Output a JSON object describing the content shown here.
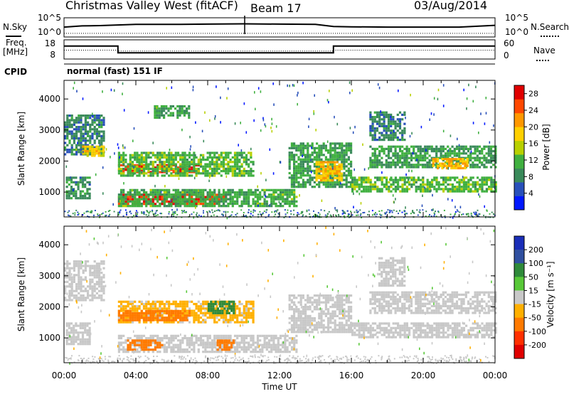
{
  "header": {
    "station": "Christmas Valley West (fitACF)",
    "beam": "Beam 17",
    "date": "03/Aug/2014"
  },
  "side_labels": {
    "nsky": "N.Sky",
    "freq_line1": "Freq.",
    "freq_line2": "[MHz]",
    "cpid": "CPID",
    "nsearch": "N.Search",
    "nave": "Nave"
  },
  "cpid_text": "normal (fast) 151 IF",
  "colors": {
    "power": [
      "#0018ff",
      "#2850ba",
      "#3a8a5a",
      "#40b040",
      "#b8d000",
      "#ffd000",
      "#ff9800",
      "#ff4800",
      "#e00000"
    ],
    "velocity": [
      "#1a2eb8",
      "#3050a0",
      "#2f8a3a",
      "#58c838",
      "#c8c8c8",
      "#c8c8c8",
      "#ffb000",
      "#ff7a00",
      "#ff3000",
      "#e00000"
    ]
  },
  "chart_data": [
    {
      "type": "line",
      "panel": "noise",
      "left_ticks": [
        "10^5",
        "10^0"
      ],
      "right_ticks": [
        "10^5",
        "10^0"
      ],
      "series": [
        {
          "name": "N.Sky",
          "x": [
            0.0,
            1.0,
            2.0,
            3.0,
            4.0,
            6.0,
            8.0,
            10.0,
            12.0,
            14.0,
            15.0,
            16.0,
            18.0,
            20.0,
            22.0,
            24.0
          ],
          "y": [
            2.6,
            3.0,
            3.1,
            3.3,
            3.5,
            3.5,
            3.6,
            3.7,
            3.6,
            3.5,
            2.8,
            2.7,
            2.6,
            2.6,
            2.6,
            3.2
          ]
        },
        {
          "name": "N.Search",
          "x": [
            0.0,
            24.0
          ],
          "y": [
            0.5,
            0.5
          ]
        }
      ]
    },
    {
      "type": "line",
      "panel": "frequency",
      "left_ticks": [
        "18",
        "8"
      ],
      "right_ticks": [
        "60",
        "0"
      ],
      "series": [
        {
          "name": "Freq.",
          "x": [
            0.0,
            3.0,
            3.0,
            15.0,
            15.0,
            24.0
          ],
          "y": [
            15.5,
            15.5,
            10.5,
            10.5,
            15.5,
            15.5
          ]
        },
        {
          "name": "Nave",
          "x": [
            0.0,
            3.0,
            3.0,
            15.0,
            15.0,
            24.0
          ],
          "y": [
            27,
            27,
            23,
            23,
            27,
            27
          ]
        }
      ]
    },
    {
      "type": "heatmap",
      "panel": "power",
      "ylabel": "Slant Range [km]",
      "xlim": [
        0,
        24
      ],
      "ylim": [
        200,
        4600
      ],
      "yticks": [
        1000,
        2000,
        3000,
        4000
      ],
      "colorbar": {
        "label": "Power [dB]",
        "ticks": [
          4,
          8,
          12,
          16,
          20,
          24,
          28
        ],
        "range": [
          0,
          30
        ]
      },
      "regions": [
        {
          "t0": 0.0,
          "t1": 2.2,
          "r0": 2200,
          "r1": 3500,
          "value": 8
        },
        {
          "t0": 0.1,
          "t1": 1.4,
          "r0": 800,
          "r1": 1500,
          "value": 9
        },
        {
          "t0": 1.0,
          "t1": 2.2,
          "r0": 2200,
          "r1": 2500,
          "value": 18
        },
        {
          "t0": 3.0,
          "t1": 7.5,
          "r0": 1650,
          "r1": 1900,
          "value": 26
        },
        {
          "t0": 3.0,
          "t1": 10.5,
          "r0": 1500,
          "r1": 2300,
          "value": 12
        },
        {
          "t0": 3.0,
          "t1": 9.0,
          "r0": 600,
          "r1": 950,
          "value": 27
        },
        {
          "t0": 3.0,
          "t1": 13.0,
          "r0": 550,
          "r1": 1100,
          "value": 11
        },
        {
          "t0": 5.0,
          "t1": 7.0,
          "r0": 3400,
          "r1": 3800,
          "value": 10
        },
        {
          "t0": 12.5,
          "t1": 16.0,
          "r0": 1200,
          "r1": 2600,
          "value": 10
        },
        {
          "t0": 14.0,
          "t1": 15.5,
          "r0": 1400,
          "r1": 2000,
          "value": 19
        },
        {
          "t0": 16.0,
          "t1": 24.0,
          "r0": 1000,
          "r1": 1500,
          "value": 12
        },
        {
          "t0": 17.0,
          "t1": 24.0,
          "r0": 1800,
          "r1": 2500,
          "value": 10
        },
        {
          "t0": 20.5,
          "t1": 22.5,
          "r0": 1750,
          "r1": 2100,
          "value": 20
        },
        {
          "t0": 17.0,
          "t1": 19.0,
          "r0": 2700,
          "r1": 3600,
          "value": 8
        }
      ]
    },
    {
      "type": "heatmap",
      "panel": "velocity",
      "xlabel": "Time UT",
      "ylabel": "Slant Range [km]",
      "xlim": [
        0,
        24
      ],
      "ylim": [
        200,
        4600
      ],
      "xticks": [
        "00:00",
        "04:00",
        "08:00",
        "12:00",
        "16:00",
        "20:00",
        "00:00"
      ],
      "yticks": [
        1000,
        2000,
        3000,
        4000
      ],
      "colorbar": {
        "label": "Velocity [m s⁻¹]",
        "ticks": [
          "200",
          "100",
          "50",
          "15",
          "-15",
          "-50",
          "-100",
          "-200"
        ],
        "range": [
          -250,
          250
        ]
      },
      "regions": [
        {
          "t0": 0.0,
          "t1": 2.2,
          "r0": 2200,
          "r1": 3500,
          "value": 0
        },
        {
          "t0": 0.1,
          "t1": 1.4,
          "r0": 800,
          "r1": 1500,
          "value": 0
        },
        {
          "t0": 3.0,
          "t1": 10.5,
          "r0": 1500,
          "r1": 2200,
          "value": -20
        },
        {
          "t0": 3.0,
          "t1": 7.0,
          "r0": 1600,
          "r1": 1900,
          "value": -60
        },
        {
          "t0": 3.0,
          "t1": 13.0,
          "r0": 550,
          "r1": 1100,
          "value": 0
        },
        {
          "t0": 3.5,
          "t1": 5.5,
          "r0": 600,
          "r1": 950,
          "value": -60
        },
        {
          "t0": 8.0,
          "t1": 9.5,
          "r0": 1800,
          "r1": 2200,
          "value": 60
        },
        {
          "t0": 8.5,
          "t1": 9.5,
          "r0": 650,
          "r1": 950,
          "value": -60
        },
        {
          "t0": 12.5,
          "t1": 16.0,
          "r0": 1200,
          "r1": 2400,
          "value": 0
        },
        {
          "t0": 16.0,
          "t1": 24.0,
          "r0": 1000,
          "r1": 1500,
          "value": 0
        },
        {
          "t0": 17.0,
          "t1": 24.0,
          "r0": 1800,
          "r1": 2500,
          "value": 0
        },
        {
          "t0": 17.5,
          "t1": 19.0,
          "r0": 2700,
          "r1": 3600,
          "value": 0
        }
      ]
    }
  ]
}
